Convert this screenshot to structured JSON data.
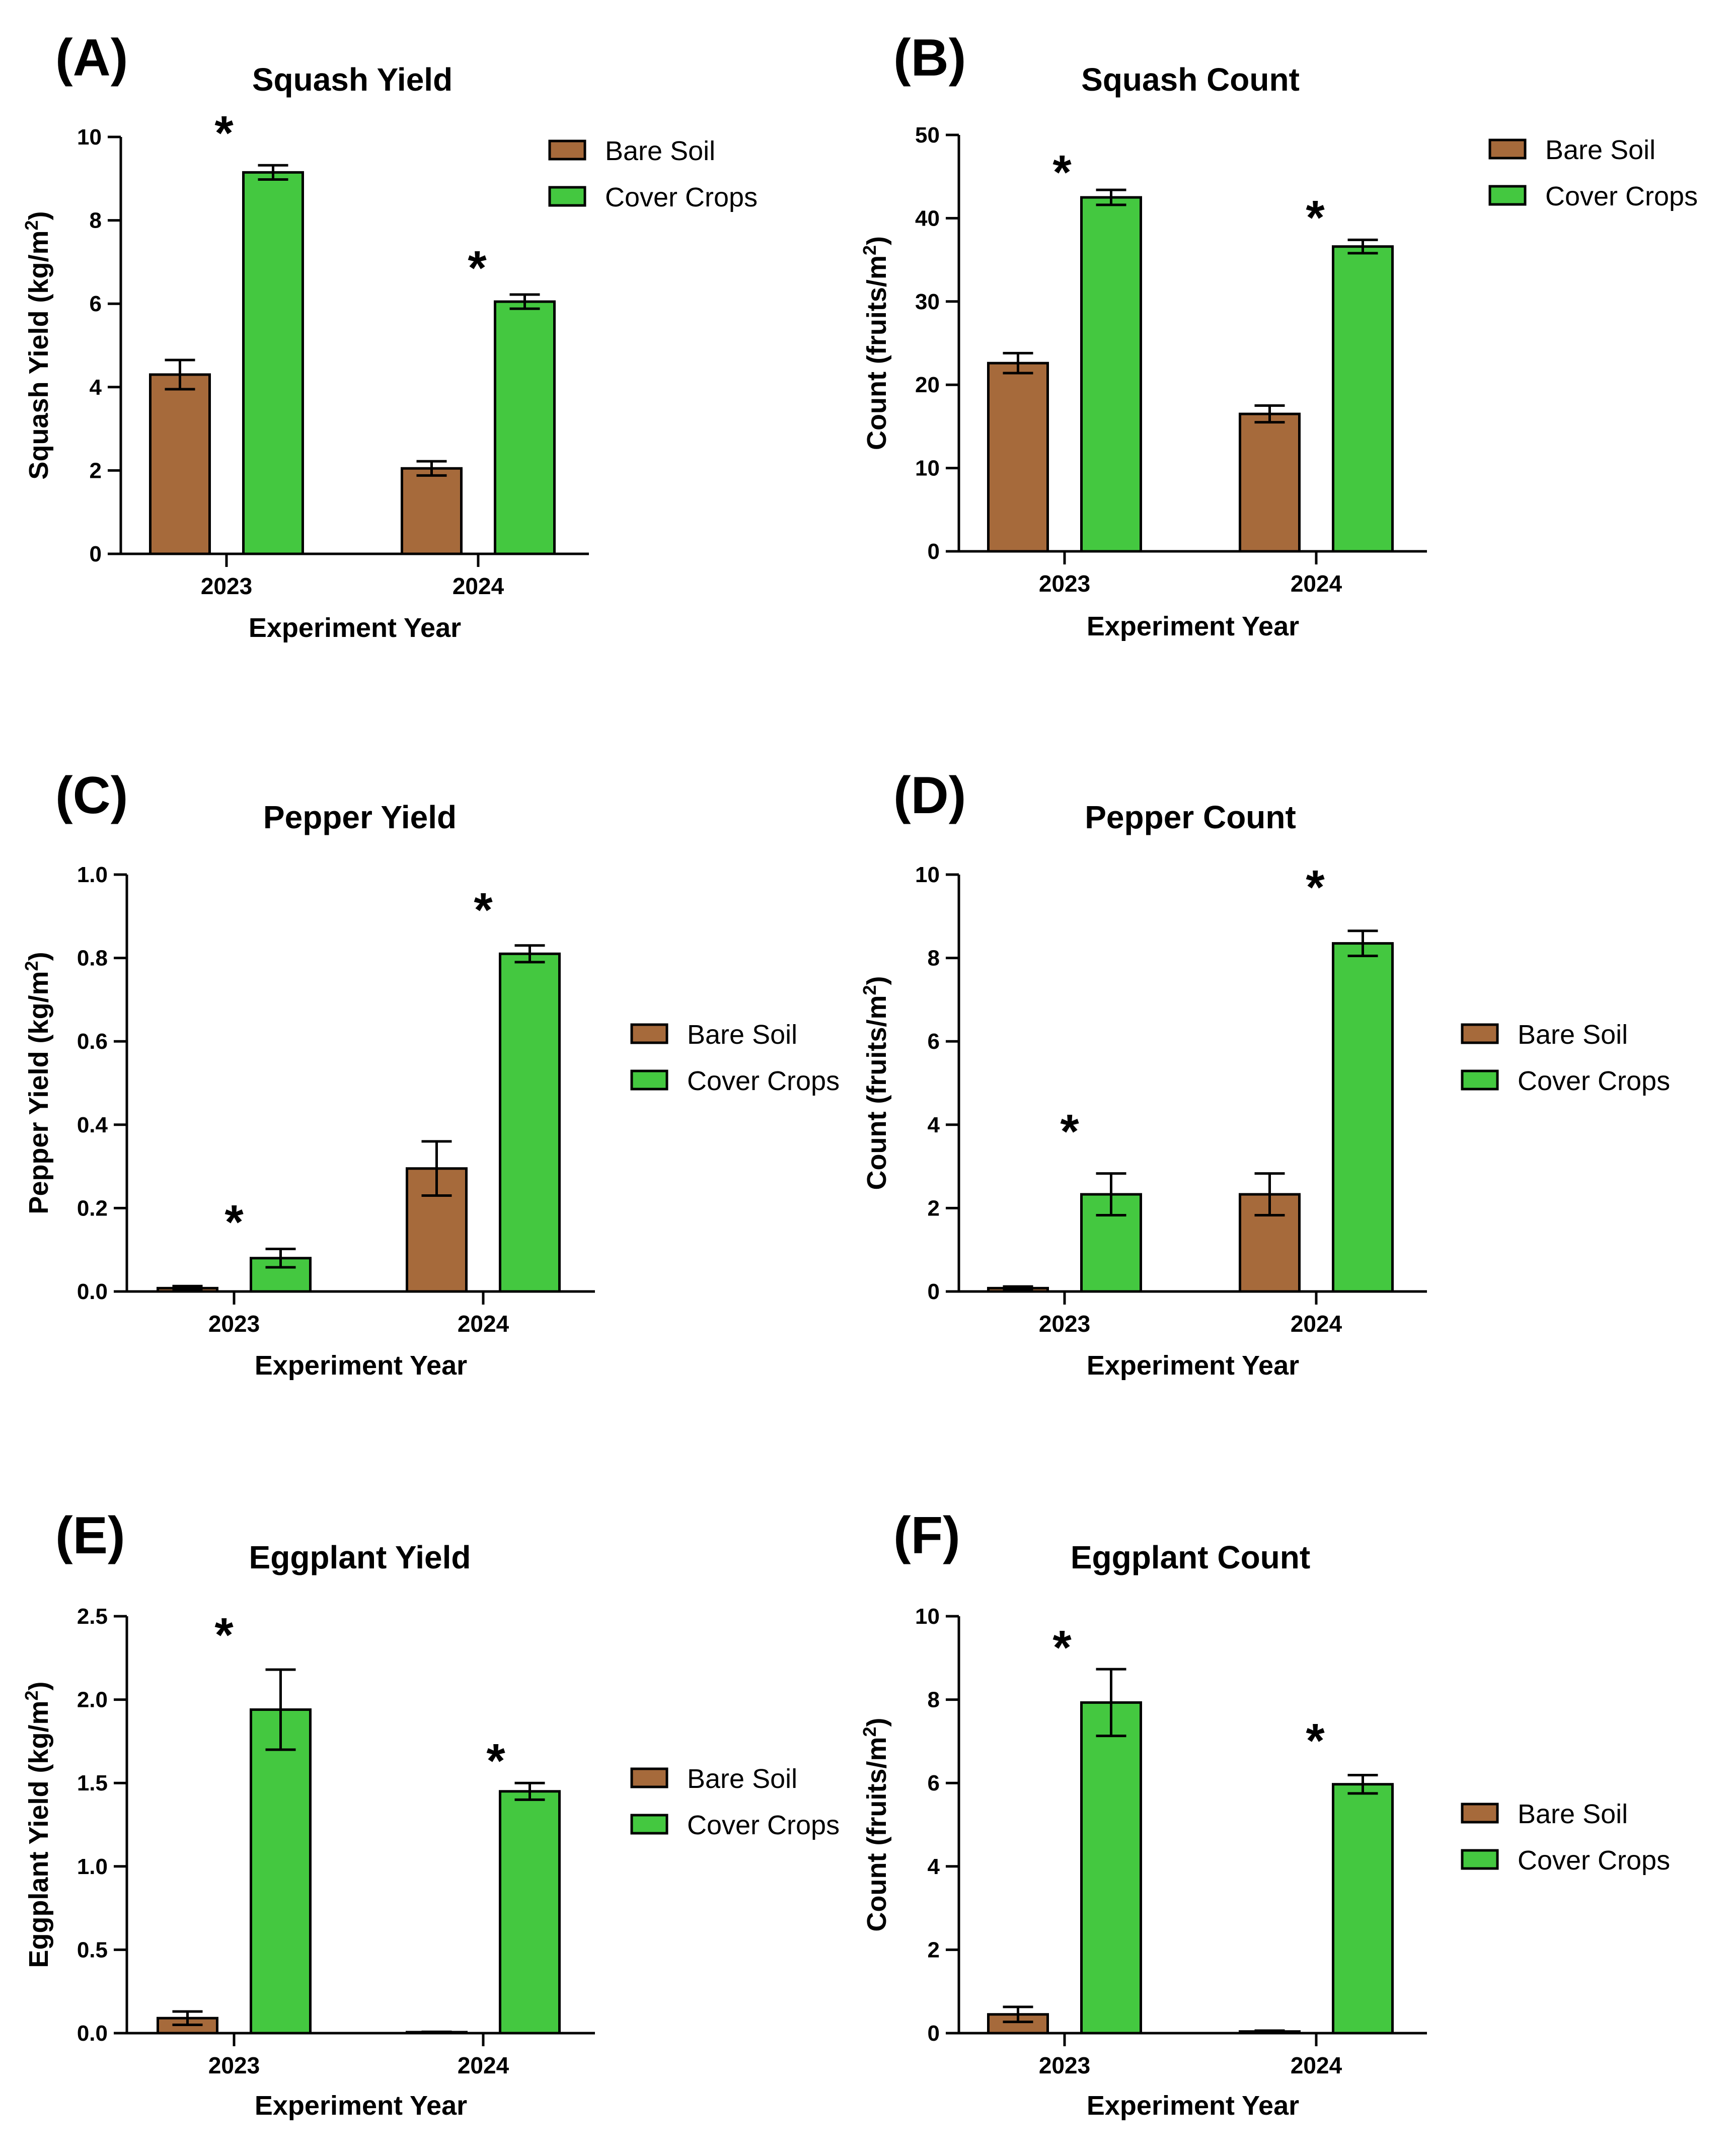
{
  "figure": {
    "colors": {
      "Bare Soil": "#A66A3B",
      "Cover Crops": "#44C840"
    }
  },
  "chart_data": [
    {
      "panel": "(A)",
      "type": "bar",
      "title": "Squash Yield",
      "xlabel": "Experiment Year",
      "ylabel": "Squash Yield (kg/m",
      "ylabel_sup": "2",
      "ylabel_end": ")",
      "ylim": [
        0,
        10
      ],
      "yticks": [
        0,
        2,
        4,
        6,
        8,
        10
      ],
      "ytick_labels": [
        "0",
        "2",
        "4",
        "6",
        "8",
        "10"
      ],
      "categories": [
        "2023",
        "2024"
      ],
      "series": [
        {
          "name": "Bare Soil",
          "values": [
            4.3,
            2.05
          ],
          "errors": [
            0.35,
            0.17
          ]
        },
        {
          "name": "Cover Crops",
          "values": [
            9.15,
            6.05
          ],
          "errors": [
            0.17,
            0.17
          ]
        }
      ],
      "significance": [
        "*",
        "*"
      ],
      "legend": "right"
    },
    {
      "panel": "(B)",
      "type": "bar",
      "title": "Squash Count",
      "xlabel": "Experiment Year",
      "ylabel": "Count (fruits/m",
      "ylabel_sup": "2",
      "ylabel_end": ")",
      "ylim": [
        0,
        50
      ],
      "yticks": [
        0,
        10,
        20,
        30,
        40,
        50
      ],
      "ytick_labels": [
        "0",
        "10",
        "20",
        "30",
        "40",
        "50"
      ],
      "categories": [
        "2023",
        "2024"
      ],
      "series": [
        {
          "name": "Bare Soil",
          "values": [
            22.6,
            16.5
          ],
          "errors": [
            1.2,
            1.0
          ]
        },
        {
          "name": "Cover Crops",
          "values": [
            42.5,
            36.6
          ],
          "errors": [
            0.9,
            0.8
          ]
        }
      ],
      "significance": [
        "*",
        "*"
      ],
      "legend": "right"
    },
    {
      "panel": "(C)",
      "type": "bar",
      "title": "Pepper Yield",
      "xlabel": "Experiment Year",
      "ylabel": "Pepper Yield (kg/m",
      "ylabel_sup": "2",
      "ylabel_end": ")",
      "ylim": [
        0,
        1.0
      ],
      "yticks": [
        0,
        0.2,
        0.4,
        0.6,
        0.8,
        1.0
      ],
      "ytick_labels": [
        "0.0",
        "0.2",
        "0.4",
        "0.6",
        "0.8",
        "1.0"
      ],
      "categories": [
        "2023",
        "2024"
      ],
      "series": [
        {
          "name": "Bare Soil",
          "values": [
            0.008,
            0.295
          ],
          "errors": [
            0.005,
            0.065
          ]
        },
        {
          "name": "Cover Crops",
          "values": [
            0.08,
            0.81
          ],
          "errors": [
            0.022,
            0.02
          ]
        }
      ],
      "significance": [
        "*",
        "*"
      ],
      "legend": "right"
    },
    {
      "panel": "(D)",
      "type": "bar",
      "title": "Pepper Count",
      "xlabel": "Experiment Year",
      "ylabel": "Count (fruits/m",
      "ylabel_sup": "2",
      "ylabel_end": ")",
      "ylim": [
        0,
        10
      ],
      "yticks": [
        0,
        2,
        4,
        6,
        8,
        10
      ],
      "ytick_labels": [
        "0",
        "2",
        "4",
        "6",
        "8",
        "10"
      ],
      "categories": [
        "2023",
        "2024"
      ],
      "series": [
        {
          "name": "Bare Soil",
          "values": [
            0.08,
            2.33
          ],
          "errors": [
            0.04,
            0.5
          ]
        },
        {
          "name": "Cover Crops",
          "values": [
            2.33,
            8.35
          ],
          "errors": [
            0.5,
            0.3
          ]
        }
      ],
      "significance": [
        "*",
        "*"
      ],
      "legend": "right"
    },
    {
      "panel": "(E)",
      "type": "bar",
      "title": "Eggplant Yield",
      "xlabel": "Experiment Year",
      "ylabel": "Eggplant Yield (kg/m",
      "ylabel_sup": "2",
      "ylabel_end": ")",
      "ylim": [
        0,
        2.5
      ],
      "yticks": [
        0,
        0.5,
        1.0,
        1.5,
        2.0,
        2.5
      ],
      "ytick_labels": [
        "0.0",
        "0.5",
        "1.0",
        "1.5",
        "2.0",
        "2.5"
      ],
      "categories": [
        "2023",
        "2024"
      ],
      "series": [
        {
          "name": "Bare Soil",
          "values": [
            0.09,
            0.005
          ],
          "errors": [
            0.04,
            0.003
          ]
        },
        {
          "name": "Cover Crops",
          "values": [
            1.94,
            1.45
          ],
          "errors": [
            0.24,
            0.05
          ]
        }
      ],
      "significance": [
        "*",
        "*"
      ],
      "legend": "right"
    },
    {
      "panel": "(F)",
      "type": "bar",
      "title": "Eggplant Count",
      "xlabel": "Experiment Year",
      "ylabel": "Count (fruits/m",
      "ylabel_sup": "2",
      "ylabel_end": ")",
      "ylim": [
        0,
        10
      ],
      "yticks": [
        0,
        2,
        4,
        6,
        8,
        10
      ],
      "ytick_labels": [
        "0",
        "2",
        "4",
        "6",
        "8",
        "10"
      ],
      "categories": [
        "2023",
        "2024"
      ],
      "series": [
        {
          "name": "Bare Soil",
          "values": [
            0.45,
            0.04
          ],
          "errors": [
            0.18,
            0.02
          ]
        },
        {
          "name": "Cover Crops",
          "values": [
            7.93,
            5.97
          ],
          "errors": [
            0.8,
            0.22
          ]
        }
      ],
      "significance": [
        "*",
        "*"
      ],
      "legend": "right"
    }
  ]
}
